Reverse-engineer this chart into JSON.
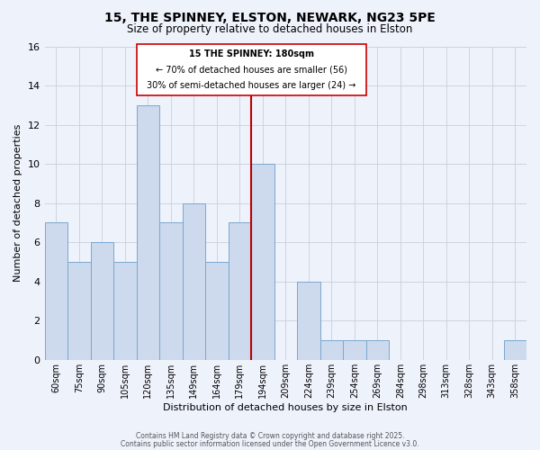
{
  "title": "15, THE SPINNEY, ELSTON, NEWARK, NG23 5PE",
  "subtitle": "Size of property relative to detached houses in Elston",
  "xlabel": "Distribution of detached houses by size in Elston",
  "ylabel": "Number of detached properties",
  "bin_labels": [
    "60sqm",
    "75sqm",
    "90sqm",
    "105sqm",
    "120sqm",
    "135sqm",
    "149sqm",
    "164sqm",
    "179sqm",
    "194sqm",
    "209sqm",
    "224sqm",
    "239sqm",
    "254sqm",
    "269sqm",
    "284sqm",
    "298sqm",
    "313sqm",
    "328sqm",
    "343sqm",
    "358sqm"
  ],
  "bar_values": [
    7,
    5,
    6,
    5,
    13,
    7,
    8,
    5,
    7,
    10,
    0,
    4,
    1,
    1,
    1,
    0,
    0,
    0,
    0,
    0,
    1
  ],
  "bar_color": "#cdd9ed",
  "bar_edge_color": "#7aa8d0",
  "background_color": "#eef2fb",
  "grid_color": "#c8d0dc",
  "vline_x_index": 8,
  "vline_color": "#bb0000",
  "annotation_title": "15 THE SPINNEY: 180sqm",
  "annotation_line1": "← 70% of detached houses are smaller (56)",
  "annotation_line2": "30% of semi-detached houses are larger (24) →",
  "annotation_box_facecolor": "#ffffff",
  "annotation_box_edgecolor": "#cc0000",
  "ylim": [
    0,
    16
  ],
  "yticks": [
    0,
    2,
    4,
    6,
    8,
    10,
    12,
    14,
    16
  ],
  "footnote1": "Contains HM Land Registry data © Crown copyright and database right 2025.",
  "footnote2": "Contains public sector information licensed under the Open Government Licence v3.0."
}
